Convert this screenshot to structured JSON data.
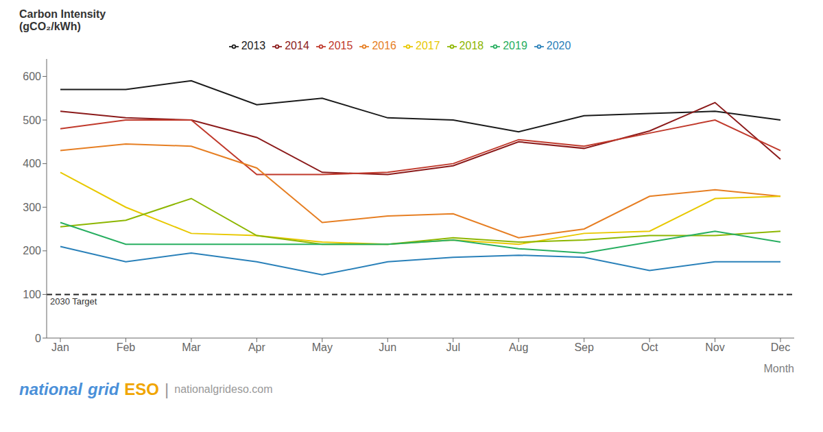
{
  "chart_data": {
    "type": "line",
    "title": "Carbon Intensity",
    "subtitle": "(gCO₂/kWh)",
    "xlabel": "Month",
    "categories": [
      "Jan",
      "Feb",
      "Mar",
      "Apr",
      "May",
      "Jun",
      "Jul",
      "Aug",
      "Sep",
      "Oct",
      "Nov",
      "Dec"
    ],
    "series": [
      {
        "name": "2013",
        "color": "#1a1a1a",
        "values": [
          570,
          570,
          590,
          535,
          550,
          505,
          500,
          473,
          510,
          515,
          520,
          500
        ]
      },
      {
        "name": "2014",
        "color": "#8B1A1A",
        "values": [
          520,
          505,
          500,
          460,
          380,
          375,
          395,
          450,
          435,
          475,
          540,
          410
        ]
      },
      {
        "name": "2015",
        "color": "#c0392b",
        "values": [
          480,
          500,
          500,
          375,
          375,
          380,
          400,
          455,
          440,
          470,
          500,
          430
        ]
      },
      {
        "name": "2016",
        "color": "#e67e22",
        "values": [
          430,
          445,
          440,
          390,
          265,
          280,
          285,
          230,
          250,
          325,
          340,
          325
        ]
      },
      {
        "name": "2017",
        "color": "#e8c800",
        "values": [
          380,
          300,
          240,
          235,
          220,
          215,
          225,
          215,
          240,
          245,
          320,
          325
        ]
      },
      {
        "name": "2018",
        "color": "#8db600",
        "values": [
          255,
          270,
          320,
          235,
          215,
          215,
          230,
          220,
          225,
          235,
          235,
          245
        ]
      },
      {
        "name": "2019",
        "color": "#27ae60",
        "values": [
          265,
          215,
          215,
          215,
          215,
          215,
          225,
          205,
          195,
          220,
          245,
          220
        ]
      },
      {
        "name": "2020",
        "color": "#2980b9",
        "values": [
          210,
          175,
          195,
          175,
          145,
          175,
          185,
          190,
          185,
          155,
          175,
          175
        ]
      }
    ],
    "ylim": [
      0,
      640
    ],
    "yticks": [
      0,
      100,
      200,
      300,
      400,
      500,
      600
    ],
    "grid": false,
    "legend": "top",
    "annotations": [
      {
        "text": "2030 Target",
        "y": 100,
        "color": "#222222",
        "line_style": "dashed"
      },
      {
        "text": "national",
        "color": "#4a90d9"
      },
      {
        "text": "grid",
        "color": "#4a90d9"
      },
      {
        "text": "ESO",
        "color": "#f0a500"
      },
      {
        "text": "|",
        "color": "#999999"
      },
      {
        "text": "nationalgrideso.com",
        "color": "#999999"
      }
    ]
  }
}
